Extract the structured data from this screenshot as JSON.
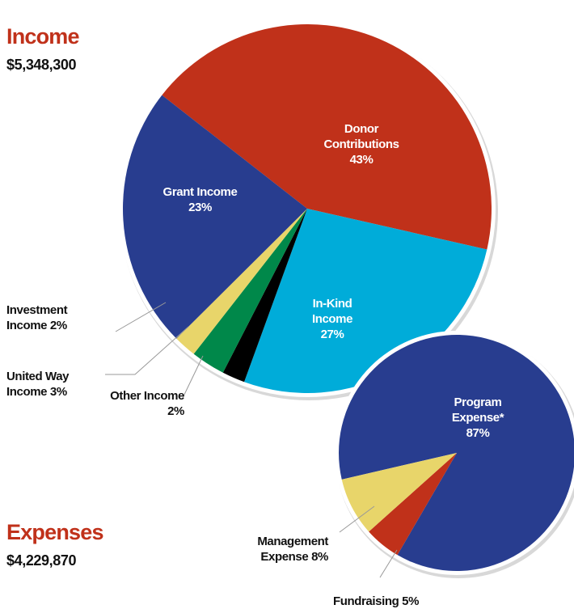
{
  "chart_data": [
    {
      "type": "pie",
      "title": "Income",
      "subtitle": "$5,348,300",
      "categories": [
        "Donor Contributions",
        "In-Kind Income",
        "Other Income",
        "United Way Income",
        "Investment Income",
        "Grant Income"
      ],
      "values": [
        43,
        27,
        2,
        3,
        2,
        23
      ],
      "value_labels": [
        "43%",
        "27%",
        "2%",
        "3%",
        "2%",
        "23%"
      ],
      "colors": [
        "#c0311a",
        "#00acd9",
        "#000000",
        "#00884a",
        "#e8d56a",
        "#283d8f"
      ]
    },
    {
      "type": "pie",
      "title": "Expenses",
      "subtitle": "$4,229,870",
      "categories": [
        "Program Expense*",
        "Fundraising",
        "Management Expense"
      ],
      "values": [
        87,
        5,
        8
      ],
      "value_labels": [
        "87%",
        "5%",
        "8%"
      ],
      "colors": [
        "#283d8f",
        "#c0311a",
        "#e8d56a"
      ]
    }
  ]
}
